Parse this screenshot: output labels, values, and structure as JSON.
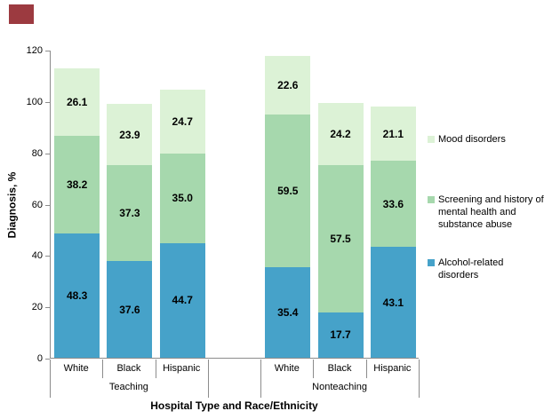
{
  "figure": {
    "corner_mark_color": "#9C3A40"
  },
  "chart_data": {
    "type": "bar",
    "stacked": true,
    "xlabel": "Hospital Type and Race/Ethnicity",
    "ylabel": "Diagnosis, %",
    "ylim": [
      0,
      120
    ],
    "yticks": [
      "0",
      "20",
      "40",
      "60",
      "80",
      "100",
      "120"
    ],
    "grid": false,
    "legend_position": "right",
    "groups": [
      {
        "label": "Teaching",
        "categories": [
          "White",
          "Black",
          "Hispanic"
        ]
      },
      {
        "label": "Nonteaching",
        "categories": [
          "White",
          "Black",
          "Hispanic"
        ]
      }
    ],
    "series": [
      {
        "name": "Alcohol-related disorders",
        "color": "#46A2C9",
        "values": [
          "48.3",
          "37.6",
          "44.7",
          "35.4",
          "17.7",
          "43.1"
        ]
      },
      {
        "name": "Screening and history of mental health and substance abuse",
        "color": "#A6D8AD",
        "values": [
          "38.2",
          "37.3",
          "35.0",
          "59.5",
          "57.5",
          "33.6"
        ]
      },
      {
        "name": "Mood disorders",
        "color": "#DCF2D6",
        "values": [
          "26.1",
          "23.9",
          "24.7",
          "22.6",
          "24.2",
          "21.1"
        ]
      }
    ],
    "legend": [
      {
        "color": "#DCF2D6",
        "lines": [
          "Mood disorders"
        ]
      },
      {
        "color": "#A6D8AD",
        "lines": [
          "Screening and history of",
          "mental health and",
          "substance abuse"
        ]
      },
      {
        "color": "#46A2C9",
        "lines": [
          "Alcohol-related",
          "disorders"
        ]
      }
    ]
  }
}
